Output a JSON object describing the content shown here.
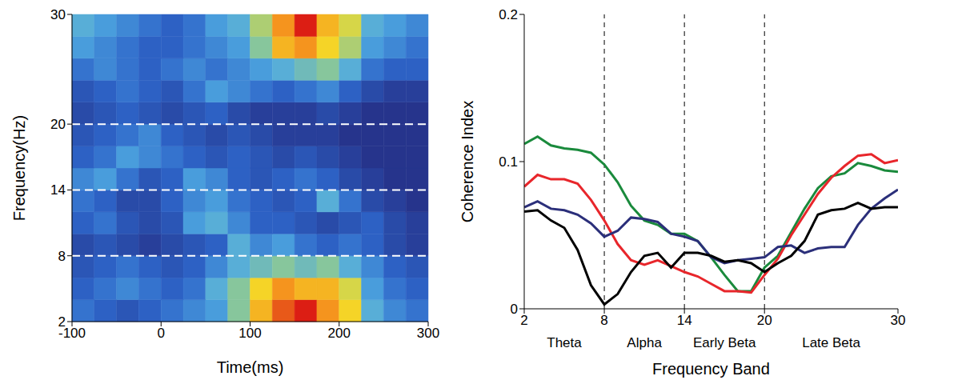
{
  "chart_data": [
    {
      "type": "heatmap",
      "xlabel": "Time(ms)",
      "ylabel": "Frequency(Hz)",
      "xlim": [
        -100,
        300
      ],
      "xticks": [
        -100,
        0,
        100,
        200,
        300
      ],
      "ylim": [
        2,
        30
      ],
      "yticks": [
        2,
        8,
        14,
        20,
        30
      ],
      "hlines": [
        8,
        14,
        20
      ],
      "x": [
        -87.5,
        -62.5,
        -37.5,
        -12.5,
        12.5,
        37.5,
        62.5,
        87.5,
        112.5,
        137.5,
        162.5,
        187.5,
        212.5,
        237.5,
        262.5,
        287.5
      ],
      "y": [
        3,
        5,
        7,
        9,
        11,
        13,
        15,
        17,
        19,
        21,
        23,
        25,
        27,
        29
      ],
      "cells": [
        [
          0.35,
          0.3,
          0.25,
          0.3,
          0.35,
          0.4,
          0.45,
          0.6,
          0.8,
          0.9,
          0.95,
          0.85,
          0.75,
          0.5,
          0.4,
          0.35
        ],
        [
          0.3,
          0.35,
          0.4,
          0.35,
          0.3,
          0.35,
          0.5,
          0.6,
          0.75,
          0.85,
          0.8,
          0.8,
          0.7,
          0.45,
          0.35,
          0.3
        ],
        [
          0.25,
          0.3,
          0.35,
          0.3,
          0.25,
          0.3,
          0.4,
          0.5,
          0.55,
          0.6,
          0.55,
          0.6,
          0.5,
          0.4,
          0.3,
          0.25
        ],
        [
          0.2,
          0.25,
          0.2,
          0.15,
          0.2,
          0.25,
          0.3,
          0.5,
          0.4,
          0.45,
          0.35,
          0.3,
          0.35,
          0.3,
          0.2,
          0.15
        ],
        [
          0.3,
          0.35,
          0.25,
          0.2,
          0.25,
          0.45,
          0.5,
          0.4,
          0.3,
          0.3,
          0.25,
          0.2,
          0.25,
          0.3,
          0.2,
          0.15
        ],
        [
          0.35,
          0.3,
          0.2,
          0.2,
          0.3,
          0.4,
          0.45,
          0.35,
          0.3,
          0.25,
          0.3,
          0.5,
          0.35,
          0.2,
          0.15,
          0.1
        ],
        [
          0.4,
          0.45,
          0.35,
          0.25,
          0.3,
          0.45,
          0.4,
          0.3,
          0.25,
          0.3,
          0.35,
          0.3,
          0.2,
          0.15,
          0.1,
          0.1
        ],
        [
          0.3,
          0.35,
          0.45,
          0.4,
          0.35,
          0.3,
          0.25,
          0.3,
          0.25,
          0.2,
          0.25,
          0.2,
          0.15,
          0.1,
          0.1,
          0.1
        ],
        [
          0.25,
          0.3,
          0.35,
          0.4,
          0.3,
          0.25,
          0.2,
          0.25,
          0.2,
          0.15,
          0.15,
          0.15,
          0.1,
          0.1,
          0.1,
          0.1
        ],
        [
          0.2,
          0.25,
          0.3,
          0.25,
          0.2,
          0.25,
          0.3,
          0.2,
          0.15,
          0.15,
          0.15,
          0.2,
          0.15,
          0.1,
          0.1,
          0.1
        ],
        [
          0.25,
          0.3,
          0.35,
          0.3,
          0.25,
          0.35,
          0.45,
          0.4,
          0.35,
          0.3,
          0.35,
          0.4,
          0.3,
          0.2,
          0.15,
          0.15
        ],
        [
          0.35,
          0.4,
          0.35,
          0.3,
          0.35,
          0.4,
          0.35,
          0.4,
          0.45,
          0.5,
          0.55,
          0.6,
          0.5,
          0.35,
          0.3,
          0.3
        ],
        [
          0.45,
          0.4,
          0.35,
          0.3,
          0.3,
          0.35,
          0.4,
          0.45,
          0.6,
          0.8,
          0.85,
          0.75,
          0.65,
          0.45,
          0.4,
          0.35
        ],
        [
          0.5,
          0.45,
          0.4,
          0.35,
          0.3,
          0.35,
          0.45,
          0.5,
          0.65,
          0.85,
          0.95,
          0.8,
          0.7,
          0.5,
          0.45,
          0.4
        ]
      ]
    },
    {
      "type": "line",
      "xlabel": "Frequency Band",
      "ylabel": "Coherence Index",
      "xlim": [
        2,
        30
      ],
      "xticks": [
        2,
        8,
        14,
        20,
        30
      ],
      "ylim": [
        0,
        0.2
      ],
      "yticks": [
        0,
        0.1,
        0.2
      ],
      "vlines": [
        8,
        14,
        20
      ],
      "annotations": [
        {
          "text": "Theta",
          "x": 5
        },
        {
          "text": "Alpha",
          "x": 11
        },
        {
          "text": "Early Beta",
          "x": 17
        },
        {
          "text": "Late Beta",
          "x": 25
        }
      ],
      "x": [
        2,
        3,
        4,
        5,
        6,
        7,
        8,
        9,
        10,
        11,
        12,
        13,
        14,
        15,
        16,
        17,
        18,
        19,
        20,
        21,
        22,
        23,
        24,
        25,
        26,
        27,
        28,
        29,
        30
      ],
      "series": [
        {
          "color": "#1a8a3c",
          "values": [
            0.112,
            0.117,
            0.111,
            0.109,
            0.108,
            0.106,
            0.098,
            0.086,
            0.07,
            0.06,
            0.057,
            0.051,
            0.051,
            0.046,
            0.035,
            0.023,
            0.012,
            0.012,
            0.028,
            0.036,
            0.052,
            0.068,
            0.082,
            0.09,
            0.092,
            0.099,
            0.097,
            0.094,
            0.093
          ]
        },
        {
          "color": "#e8262b",
          "values": [
            0.083,
            0.091,
            0.088,
            0.088,
            0.085,
            0.074,
            0.06,
            0.044,
            0.033,
            0.03,
            0.033,
            0.029,
            0.025,
            0.022,
            0.017,
            0.012,
            0.012,
            0.011,
            0.023,
            0.034,
            0.05,
            0.064,
            0.078,
            0.089,
            0.097,
            0.104,
            0.105,
            0.099,
            0.101
          ]
        },
        {
          "color": "#2b2f7a",
          "values": [
            0.069,
            0.073,
            0.068,
            0.067,
            0.064,
            0.058,
            0.049,
            0.053,
            0.062,
            0.061,
            0.059,
            0.051,
            0.049,
            0.046,
            0.035,
            0.031,
            0.033,
            0.034,
            0.035,
            0.042,
            0.043,
            0.038,
            0.041,
            0.042,
            0.042,
            0.057,
            0.068,
            0.075,
            0.081
          ]
        },
        {
          "color": "#000000",
          "values": [
            0.066,
            0.067,
            0.06,
            0.055,
            0.04,
            0.016,
            0.003,
            0.01,
            0.025,
            0.036,
            0.038,
            0.028,
            0.038,
            0.038,
            0.036,
            0.032,
            0.033,
            0.031,
            0.025,
            0.031,
            0.036,
            0.046,
            0.064,
            0.067,
            0.068,
            0.072,
            0.068,
            0.069,
            0.069
          ]
        }
      ]
    }
  ]
}
